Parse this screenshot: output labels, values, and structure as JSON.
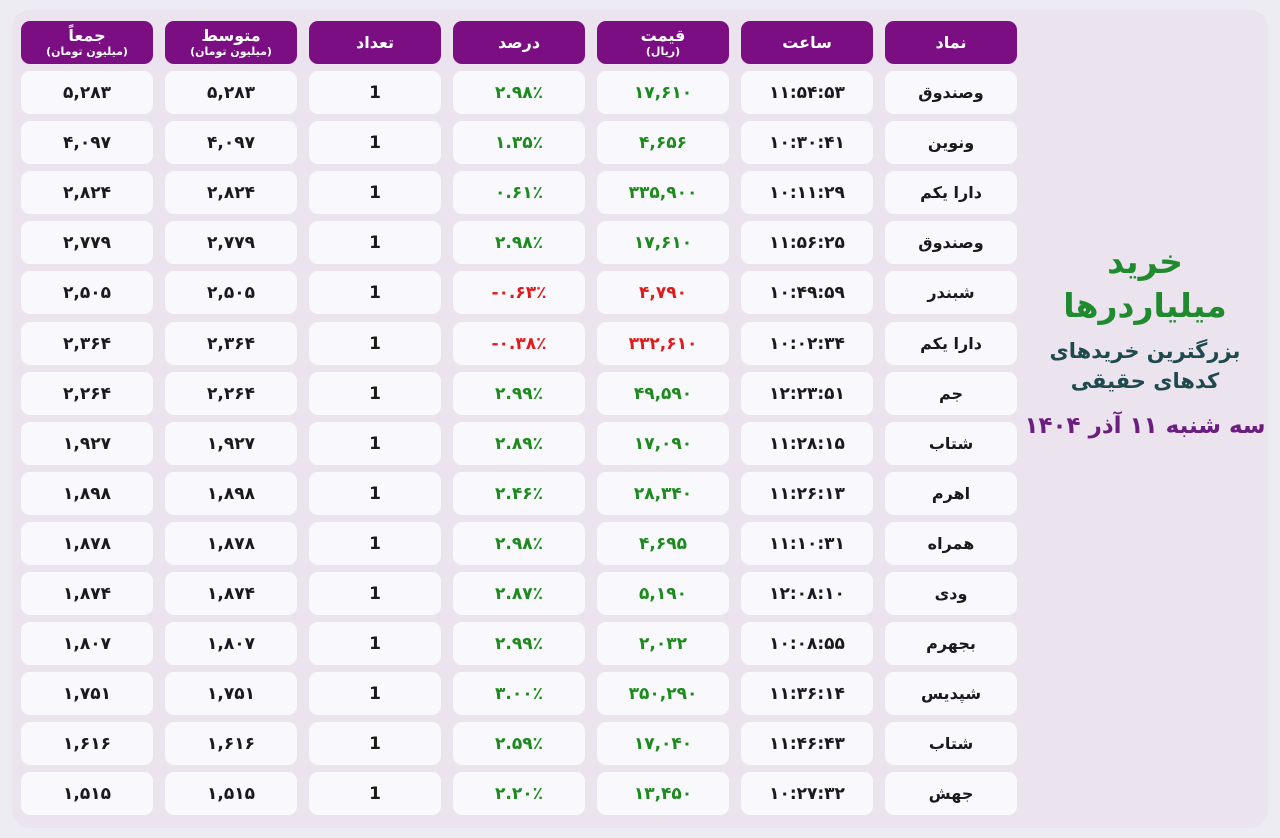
{
  "title": "خرید میلیاردرها",
  "subtitle_line1": "بزرگترین خریدهای",
  "subtitle_line2": "کدهای حقیقی",
  "date": "سه شنبه ۱۱ آذر ۱۴۰۴",
  "colors": {
    "header_bg": "#7c0e84",
    "positive": "#1c8a1c",
    "negative": "#e01b1b",
    "title_green": "#1f8a2e",
    "date_purple": "#6b1e80"
  },
  "columns": [
    {
      "key": "symbol",
      "label": "نماد",
      "sub": ""
    },
    {
      "key": "time",
      "label": "ساعت",
      "sub": ""
    },
    {
      "key": "price",
      "label": "قیمت",
      "sub": "(ریال)"
    },
    {
      "key": "percent",
      "label": "درصد",
      "sub": ""
    },
    {
      "key": "count",
      "label": "تعداد",
      "sub": ""
    },
    {
      "key": "avg",
      "label": "متوسط",
      "sub": "(میلیون تومان)"
    },
    {
      "key": "total",
      "label": "جمعاً",
      "sub": "(میلیون تومان)"
    }
  ],
  "rows": [
    {
      "symbol": "وصندوق",
      "time": "۱۱:۵۴:۵۳",
      "price": "۱۷,۶۱۰",
      "percent": "۲.۹۸٪",
      "trend": "pos",
      "count": "1",
      "avg": "۵,۲۸۳",
      "total": "۵,۲۸۳"
    },
    {
      "symbol": "ونوین",
      "time": "۱۰:۳۰:۴۱",
      "price": "۴,۶۵۶",
      "percent": "۱.۳۵٪",
      "trend": "pos",
      "count": "1",
      "avg": "۴,۰۹۷",
      "total": "۴,۰۹۷"
    },
    {
      "symbol": "دارا یکم",
      "time": "۱۰:۱۱:۲۹",
      "price": "۳۳۵,۹۰۰",
      "percent": "۰.۶۱٪",
      "trend": "pos",
      "count": "1",
      "avg": "۲,۸۲۴",
      "total": "۲,۸۲۴"
    },
    {
      "symbol": "وصندوق",
      "time": "۱۱:۵۶:۲۵",
      "price": "۱۷,۶۱۰",
      "percent": "۲.۹۸٪",
      "trend": "pos",
      "count": "1",
      "avg": "۲,۷۷۹",
      "total": "۲,۷۷۹"
    },
    {
      "symbol": "شبندر",
      "time": "۱۰:۴۹:۵۹",
      "price": "۴,۷۹۰",
      "percent": "-۰.۶۳٪",
      "trend": "neg",
      "count": "1",
      "avg": "۲,۵۰۵",
      "total": "۲,۵۰۵"
    },
    {
      "symbol": "دارا یکم",
      "time": "۱۰:۰۲:۳۴",
      "price": "۳۳۲,۶۱۰",
      "percent": "-۰.۳۸٪",
      "trend": "neg",
      "count": "1",
      "avg": "۲,۳۶۴",
      "total": "۲,۳۶۴"
    },
    {
      "symbol": "جم",
      "time": "۱۲:۲۳:۵۱",
      "price": "۴۹,۵۹۰",
      "percent": "۲.۹۹٪",
      "trend": "pos",
      "count": "1",
      "avg": "۲,۲۶۴",
      "total": "۲,۲۶۴"
    },
    {
      "symbol": "شتاب",
      "time": "۱۱:۲۸:۱۵",
      "price": "۱۷,۰۹۰",
      "percent": "۲.۸۹٪",
      "trend": "pos",
      "count": "1",
      "avg": "۱,۹۲۷",
      "total": "۱,۹۲۷"
    },
    {
      "symbol": "اهرم",
      "time": "۱۱:۲۶:۱۳",
      "price": "۲۸,۳۴۰",
      "percent": "۲.۴۶٪",
      "trend": "pos",
      "count": "1",
      "avg": "۱,۸۹۸",
      "total": "۱,۸۹۸"
    },
    {
      "symbol": "همراه",
      "time": "۱۱:۱۰:۳۱",
      "price": "۴,۶۹۵",
      "percent": "۲.۹۸٪",
      "trend": "pos",
      "count": "1",
      "avg": "۱,۸۷۸",
      "total": "۱,۸۷۸"
    },
    {
      "symbol": "ودی",
      "time": "۱۲:۰۸:۱۰",
      "price": "۵,۱۹۰",
      "percent": "۲.۸۷٪",
      "trend": "pos",
      "count": "1",
      "avg": "۱,۸۷۴",
      "total": "۱,۸۷۴"
    },
    {
      "symbol": "بجهرم",
      "time": "۱۰:۰۸:۵۵",
      "price": "۲,۰۳۲",
      "percent": "۲.۹۹٪",
      "trend": "pos",
      "count": "1",
      "avg": "۱,۸۰۷",
      "total": "۱,۸۰۷"
    },
    {
      "symbol": "شپدیس",
      "time": "۱۱:۳۶:۱۴",
      "price": "۳۵۰,۲۹۰",
      "percent": "۳.۰۰٪",
      "trend": "pos",
      "count": "1",
      "avg": "۱,۷۵۱",
      "total": "۱,۷۵۱"
    },
    {
      "symbol": "شتاب",
      "time": "۱۱:۴۶:۴۳",
      "price": "۱۷,۰۴۰",
      "percent": "۲.۵۹٪",
      "trend": "pos",
      "count": "1",
      "avg": "۱,۶۱۶",
      "total": "۱,۶۱۶"
    },
    {
      "symbol": "جهش",
      "time": "۱۰:۲۷:۳۲",
      "price": "۱۳,۴۵۰",
      "percent": "۲.۲۰٪",
      "trend": "pos",
      "count": "1",
      "avg": "۱,۵۱۵",
      "total": "۱,۵۱۵"
    }
  ]
}
